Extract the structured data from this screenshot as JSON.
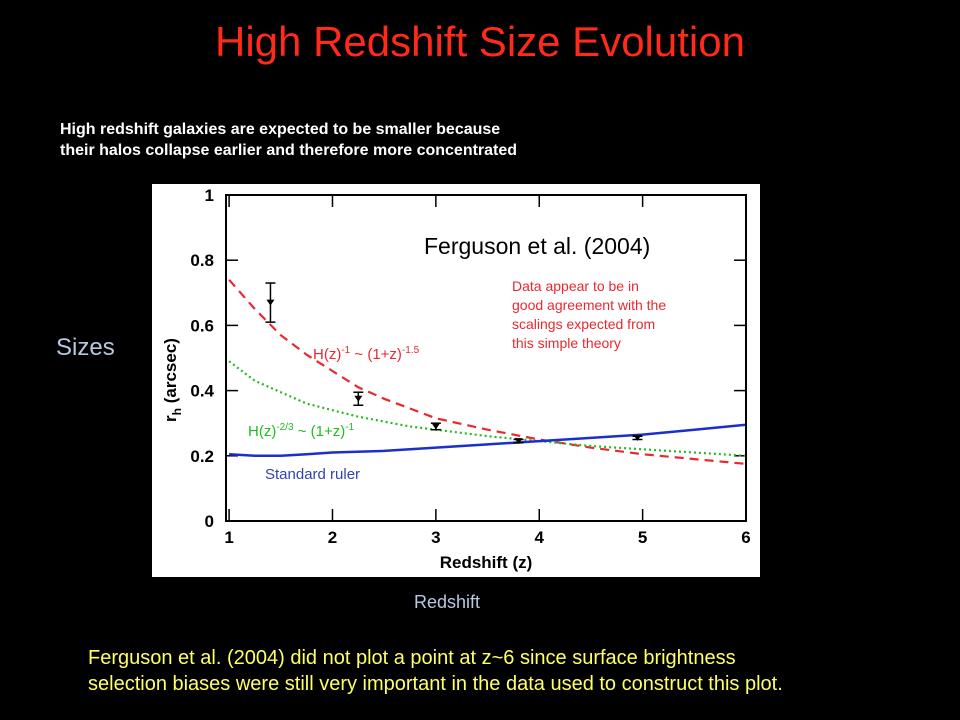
{
  "title": "High Redshift Size Evolution",
  "intro": [
    "High redshift galaxies are expected to be smaller because",
    "their halos collapse earlier and therefore more concentrated"
  ],
  "sizes_label": "Sizes",
  "redshift_caption": "Redshift",
  "footnote": [
    "Ferguson et al. (2004) did not plot a point at z~6 since surface brightness",
    "selection biases were still very important in the data used to construct this plot."
  ],
  "chart_data": {
    "type": "line",
    "title": "Ferguson et al. (2004)",
    "xlabel": "Redshift (z)",
    "ylabel": "r_h (arcsec)",
    "xlim": [
      0.97,
      6
    ],
    "ylim": [
      0,
      1
    ],
    "xticks": [
      1,
      2,
      3,
      4,
      5,
      6
    ],
    "yticks": [
      0,
      0.2,
      0.4,
      0.6,
      0.8,
      1
    ],
    "annotation": [
      "Data appear to be in",
      "good agreement with the",
      "scalings expected from",
      "this simple theory"
    ],
    "series": [
      {
        "label_base": "H(z)",
        "label_exp": "-1",
        "label_mid": " ~ (1+z)",
        "label_exp2": "-1.5",
        "color": "#e8292f",
        "style": "dashed",
        "x": [
          1.0,
          1.25,
          1.5,
          1.75,
          2.0,
          2.25,
          2.5,
          2.75,
          3.0,
          3.5,
          4.0,
          4.5,
          5.0,
          5.5,
          6.0
        ],
        "y": [
          0.74,
          0.65,
          0.57,
          0.51,
          0.46,
          0.41,
          0.375,
          0.345,
          0.315,
          0.28,
          0.25,
          0.225,
          0.205,
          0.19,
          0.175
        ]
      },
      {
        "label_base": "H(z)",
        "label_exp": "-2/3",
        "label_mid": " ~ (1+z)",
        "label_exp2": "-1",
        "color": "#22bb22",
        "style": "dotted",
        "x": [
          1.0,
          1.25,
          1.5,
          1.75,
          2.0,
          2.25,
          2.5,
          2.75,
          3.0,
          3.5,
          4.0,
          4.5,
          5.0,
          5.5,
          6.0
        ],
        "y": [
          0.49,
          0.43,
          0.395,
          0.36,
          0.34,
          0.32,
          0.305,
          0.29,
          0.28,
          0.26,
          0.245,
          0.23,
          0.22,
          0.21,
          0.2
        ]
      },
      {
        "label": "Standard ruler",
        "color": "#1a2fcc",
        "style": "solid",
        "x": [
          1.0,
          1.25,
          1.5,
          1.75,
          2.0,
          2.5,
          3.0,
          3.5,
          4.0,
          4.5,
          5.0,
          5.5,
          6.0
        ],
        "y": [
          0.205,
          0.2,
          0.2,
          0.205,
          0.21,
          0.215,
          0.225,
          0.235,
          0.245,
          0.255,
          0.265,
          0.28,
          0.295
        ]
      }
    ],
    "points": [
      {
        "x": 1.4,
        "y": 0.67,
        "err_low": 0.61,
        "err_high": 0.73
      },
      {
        "x": 2.25,
        "y": 0.375,
        "err_low": 0.355,
        "err_high": 0.395
      },
      {
        "x": 3.0,
        "y": 0.29,
        "err_low": 0.28,
        "err_high": 0.3
      },
      {
        "x": 3.8,
        "y": 0.245,
        "err_low": 0.24,
        "err_high": 0.25
      },
      {
        "x": 4.95,
        "y": 0.255,
        "err_low": 0.25,
        "err_high": 0.26
      }
    ]
  }
}
